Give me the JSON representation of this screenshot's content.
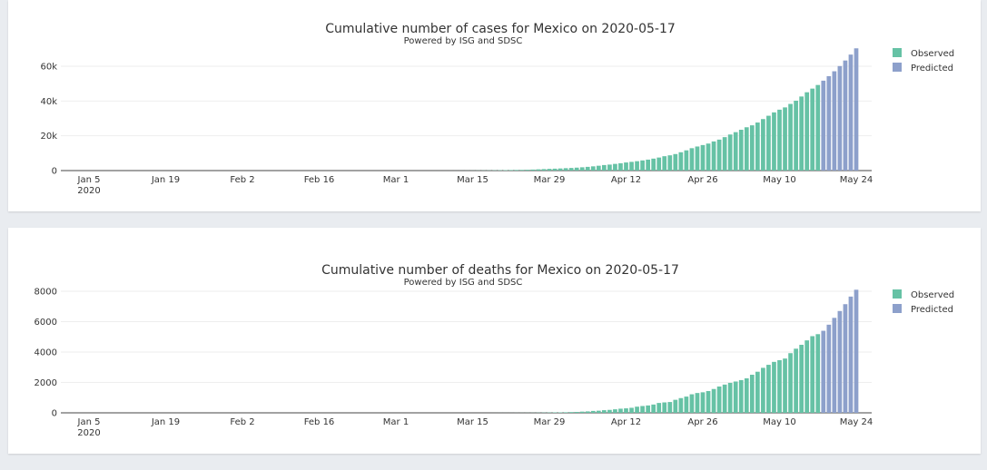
{
  "colors": {
    "observed": "#66c2a5",
    "predicted": "#8da0cb"
  },
  "chart_data": [
    {
      "type": "bar",
      "title": "Cumulative number of cases for Mexico on 2020-05-17",
      "subtitle": "Powered by ISG and SDSC",
      "xlabel": "",
      "ylabel": "",
      "x_ticks": [
        "Jan 5",
        "Jan 19",
        "Feb 2",
        "Feb 16",
        "Mar 1",
        "Mar 15",
        "Mar 29",
        "Apr 12",
        "Apr 26",
        "May 10",
        "May 24"
      ],
      "x_tick_year": "2020",
      "y_ticks": [
        "0",
        "20k",
        "40k",
        "60k"
      ],
      "y_tick_values": [
        0,
        20000,
        40000,
        60000
      ],
      "ylim": [
        0,
        74000
      ],
      "legend": [
        "Observed",
        "Predicted"
      ],
      "legend_position": "top-right",
      "start_date": "2020-02-28",
      "series": [
        {
          "name": "Observed",
          "values": [
            1,
            4,
            5,
            5,
            5,
            5,
            5,
            6,
            6,
            7,
            7,
            7,
            8,
            12,
            26,
            41,
            53,
            82,
            93,
            118,
            164,
            203,
            251,
            316,
            367,
            405,
            475,
            585,
            717,
            848,
            993,
            1094,
            1215,
            1378,
            1510,
            1688,
            1890,
            2143,
            2439,
            2785,
            3181,
            3441,
            3844,
            4219,
            4661,
            5014,
            5399,
            5847,
            6297,
            6875,
            7497,
            8261,
            8772,
            9501,
            10544,
            11633,
            12872,
            13842,
            14677,
            15529,
            16752,
            17799,
            19224,
            20739,
            22088,
            23471,
            24905,
            26025,
            27634,
            29616,
            31522,
            33460,
            35022,
            36327,
            38324,
            40186,
            42595,
            45032,
            47144,
            49219
          ]
        },
        {
          "name": "Predicted",
          "start_date": "2020-05-18",
          "values": [
            51700,
            54300,
            57100,
            60100,
            63300,
            66700,
            70300
          ]
        }
      ]
    },
    {
      "type": "bar",
      "title": "Cumulative number of deaths for Mexico on 2020-05-17",
      "subtitle": "Powered by ISG and SDSC",
      "xlabel": "",
      "ylabel": "",
      "x_ticks": [
        "Jan 5",
        "Jan 19",
        "Feb 2",
        "Feb 16",
        "Mar 1",
        "Mar 15",
        "Mar 29",
        "Apr 12",
        "Apr 26",
        "May 10",
        "May 24"
      ],
      "x_tick_year": "2020",
      "y_ticks": [
        "0",
        "2000",
        "4000",
        "6000",
        "8000"
      ],
      "y_tick_values": [
        0,
        2000,
        4000,
        6000,
        8000
      ],
      "ylim": [
        0,
        8250
      ],
      "legend": [
        "Observed",
        "Predicted"
      ],
      "legend_position": "top-right",
      "start_date": "2020-03-19",
      "series": [
        {
          "name": "Observed",
          "values": [
            1,
            2,
            2,
            2,
            4,
            5,
            6,
            8,
            12,
            16,
            20,
            28,
            29,
            37,
            50,
            60,
            79,
            94,
            125,
            141,
            174,
            194,
            233,
            273,
            296,
            332,
            406,
            449,
            486,
            546,
            650,
            686,
            712,
            857,
            970,
            1069,
            1221,
            1305,
            1351,
            1434,
            1569,
            1732,
            1859,
            1972,
            2061,
            2154,
            2271,
            2507,
            2704,
            2961,
            3160,
            3353,
            3465,
            3573,
            3926,
            4220,
            4477,
            4767,
            5045,
            5177
          ]
        },
        {
          "name": "Predicted",
          "start_date": "2020-05-18",
          "values": [
            5400,
            5800,
            6250,
            6700,
            7150,
            7650,
            8100
          ]
        }
      ]
    }
  ]
}
